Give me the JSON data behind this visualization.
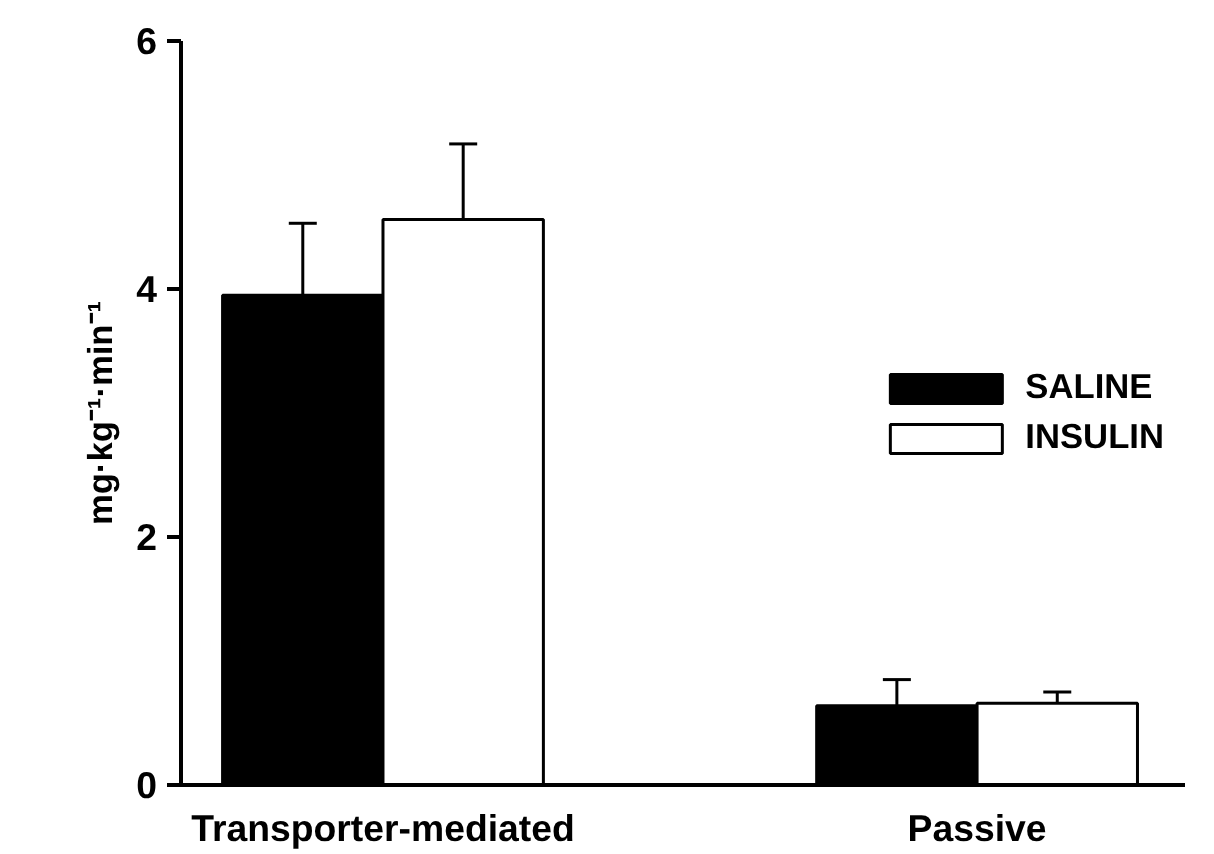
{
  "chart_data": {
    "type": "bar",
    "ylabel": "mg·kg⁻¹·min⁻¹",
    "categories": [
      "Transporter-mediated",
      "Passive"
    ],
    "series": [
      {
        "name": "SALINE",
        "color": "#000000",
        "values": [
          3.95,
          0.64
        ],
        "errors": [
          [
            3.95,
            4.53
          ],
          [
            0.64,
            0.85
          ]
        ]
      },
      {
        "name": "INSULIN",
        "color": "#ffffff",
        "values": [
          4.56,
          0.66
        ],
        "errors": [
          [
            4.56,
            5.17
          ],
          [
            0.66,
            0.75
          ]
        ]
      }
    ],
    "ylim": [
      0,
      6
    ],
    "yticks": [
      0,
      2,
      4,
      6
    ],
    "grid": false,
    "legend": "right"
  }
}
